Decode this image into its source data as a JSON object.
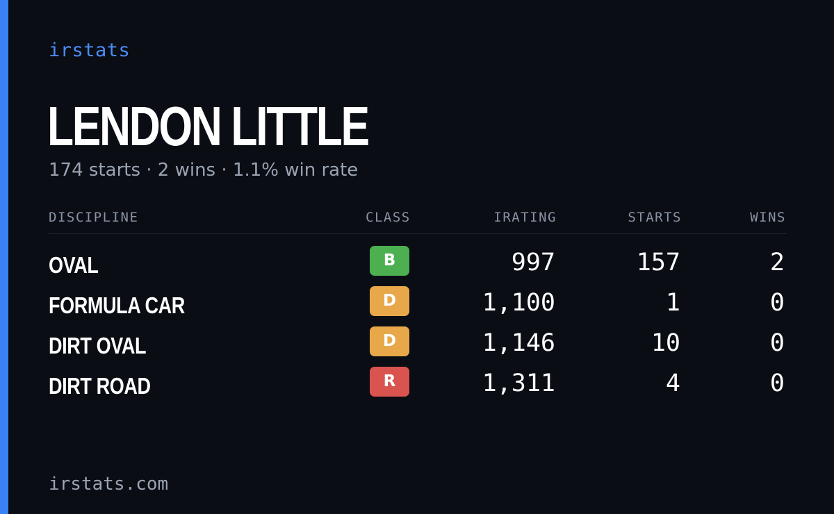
{
  "brand": "irstats",
  "driver": {
    "name": "LENDON LITTLE",
    "summary": "174 starts · 2 wins · 1.1% win rate"
  },
  "table": {
    "headers": {
      "discipline": "DISCIPLINE",
      "class": "CLASS",
      "irating": "IRATING",
      "starts": "STARTS",
      "wins": "WINS"
    },
    "rows": [
      {
        "discipline": "OVAL",
        "class": "B",
        "irating": "997",
        "starts": "157",
        "wins": "2"
      },
      {
        "discipline": "FORMULA CAR",
        "class": "D",
        "irating": "1,100",
        "starts": "1",
        "wins": "0"
      },
      {
        "discipline": "DIRT OVAL",
        "class": "D",
        "irating": "1,146",
        "starts": "10",
        "wins": "0"
      },
      {
        "discipline": "DIRT ROAD",
        "class": "R",
        "irating": "1,311",
        "starts": "4",
        "wins": "0"
      }
    ]
  },
  "colors": {
    "accent": "#3b82f6",
    "background": "#0a0d14",
    "class_b": "#4caf50",
    "class_d": "#e8a84a",
    "class_r": "#d9534f"
  },
  "footer": "irstats.com"
}
